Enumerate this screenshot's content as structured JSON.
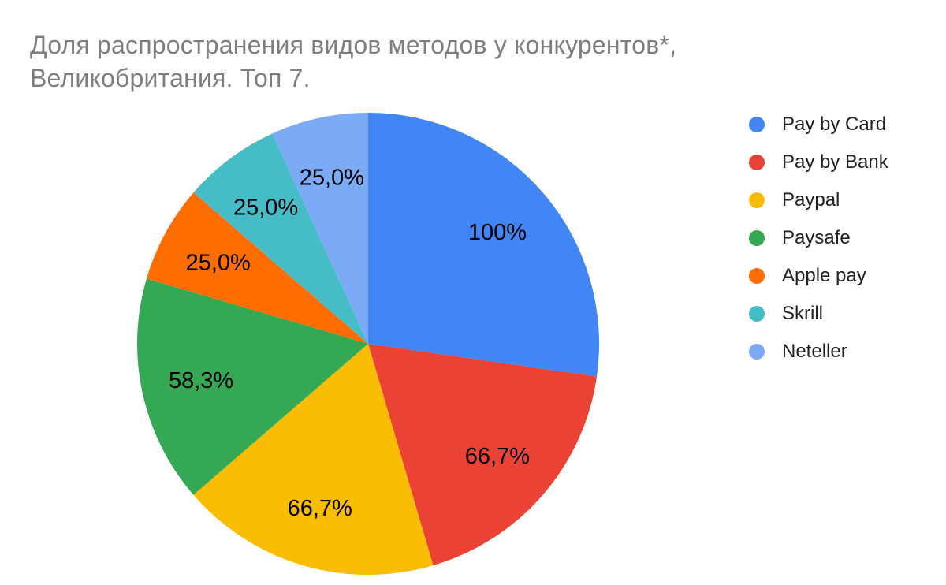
{
  "chart_data": {
    "type": "pie",
    "title": "Доля распространения видов методов у конкурентов*, Великобритания. Топ 7.",
    "title_lines": [
      "Доля распространения видов методов у конкурентов*,",
      "Великобритания. Топ 7."
    ],
    "title_color": "#7e7e7e",
    "background_color": "#ffffff",
    "legend_position": "right",
    "legend_text_color": "#212121",
    "slice_label_color": "#000000",
    "start_angle_deg": 0,
    "direction": "clockwise",
    "total": 366.7,
    "slices": [
      {
        "name": "Pay by Card",
        "value": 100,
        "display_label": "100%",
        "color": "#4285F4"
      },
      {
        "name": "Pay by Bank",
        "value": 66.7,
        "display_label": "66,7%",
        "color": "#EA4335"
      },
      {
        "name": "Paypal",
        "value": 66.7,
        "display_label": "66,7%",
        "color": "#FBBC04"
      },
      {
        "name": "Paysafe",
        "value": 58.3,
        "display_label": "58,3%",
        "color": "#34A853"
      },
      {
        "name": "Apple pay",
        "value": 25,
        "display_label": "25,0%",
        "color": "#FF6D01"
      },
      {
        "name": "Skrill",
        "value": 25,
        "display_label": "25,0%",
        "color": "#46BDC6"
      },
      {
        "name": "Neteller",
        "value": 25,
        "display_label": "25,0%",
        "color": "#7BAAF7"
      }
    ]
  }
}
